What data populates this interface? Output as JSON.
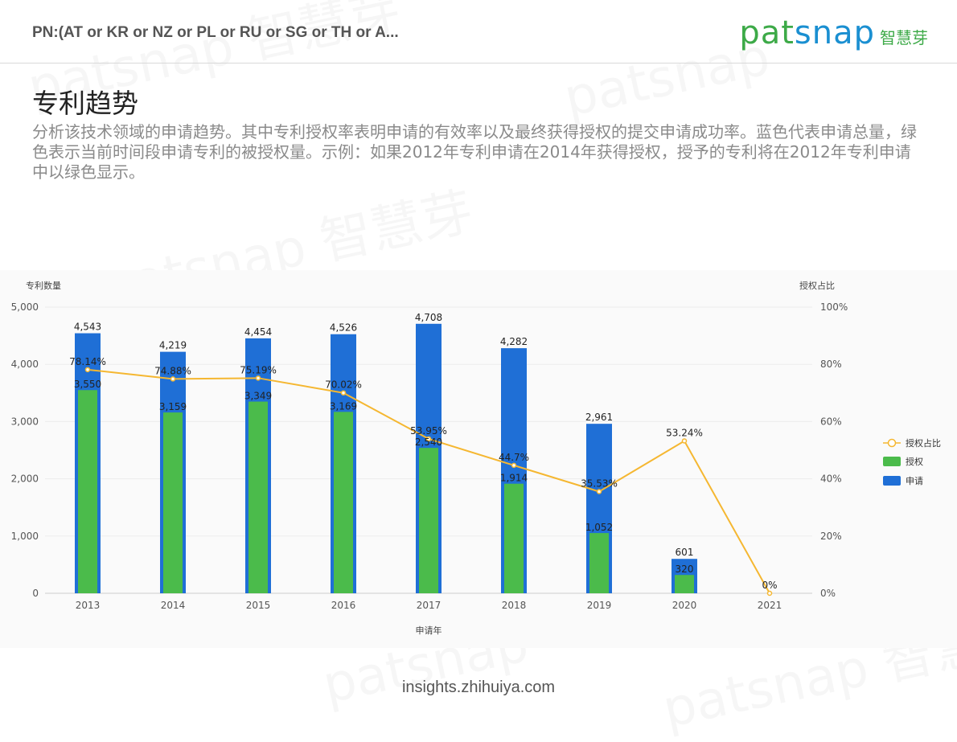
{
  "header": {
    "query": "PN:(AT or KR or NZ or PL or RU or SG or TH or A...",
    "brand_en_pat": "pat",
    "brand_en_snap": "snap",
    "brand_cn": "智慧芽"
  },
  "title": "专利趋势",
  "description": "分析该技术领域的申请趋势。其中专利授权率表明申请的有效率以及最终获得授权的提交申请成功率。蓝色代表申请总量，绿色表示当前时间段申请专利的被授权量。示例：如果2012年专利申请在2014年获得授权，授予的专利将在2012年专利申请中以绿色显示。",
  "footer": "insights.zhihuiya.com",
  "colors": {
    "applications": "#1f6fd6",
    "grants": "#4bbb4b",
    "ratio": "#f5b731",
    "brand_green": "#3daa48",
    "brand_blue": "#1a8fd1"
  },
  "chart_data": {
    "type": "bar",
    "categories": [
      "2013",
      "2014",
      "2015",
      "2016",
      "2017",
      "2018",
      "2019",
      "2020",
      "2021"
    ],
    "series": [
      {
        "name": "申请",
        "type": "bar",
        "values": [
          4543,
          4219,
          4454,
          4526,
          4708,
          4282,
          2961,
          601,
          0
        ],
        "labels": [
          "4,543",
          "4,219",
          "4,454",
          "4,526",
          "4,708",
          "4,282",
          "2,961",
          "601",
          ""
        ]
      },
      {
        "name": "授权",
        "type": "bar",
        "values": [
          3550,
          3159,
          3349,
          3169,
          2540,
          1914,
          1052,
          320,
          0
        ],
        "labels": [
          "3,550",
          "3,159",
          "3,349",
          "3,169",
          "2,540",
          "1,914",
          "1,052",
          "320",
          ""
        ]
      },
      {
        "name": "授权占比",
        "type": "line",
        "axis": "right",
        "values": [
          78.14,
          74.88,
          75.19,
          70.02,
          53.95,
          44.7,
          35.53,
          53.24,
          0
        ],
        "labels": [
          "78.14%",
          "74.88%",
          "75.19%",
          "70.02%",
          "53.95%",
          "44.7%",
          "35.53%",
          "53.24%",
          "0%"
        ]
      }
    ],
    "xlabel": "申请年",
    "ylabel": "专利数量",
    "ylabel_right": "授权占比",
    "ylim": [
      0,
      5000
    ],
    "ylim_right": [
      0,
      100
    ],
    "y_ticks": [
      "0",
      "1,000",
      "2,000",
      "3,000",
      "4,000",
      "5,000"
    ],
    "y_ticks_right": [
      "0%",
      "20%",
      "40%",
      "60%",
      "80%",
      "100%"
    ],
    "legend": [
      "授权占比",
      "授权",
      "申请"
    ],
    "legend_position": "right",
    "grid": "horizontal"
  }
}
